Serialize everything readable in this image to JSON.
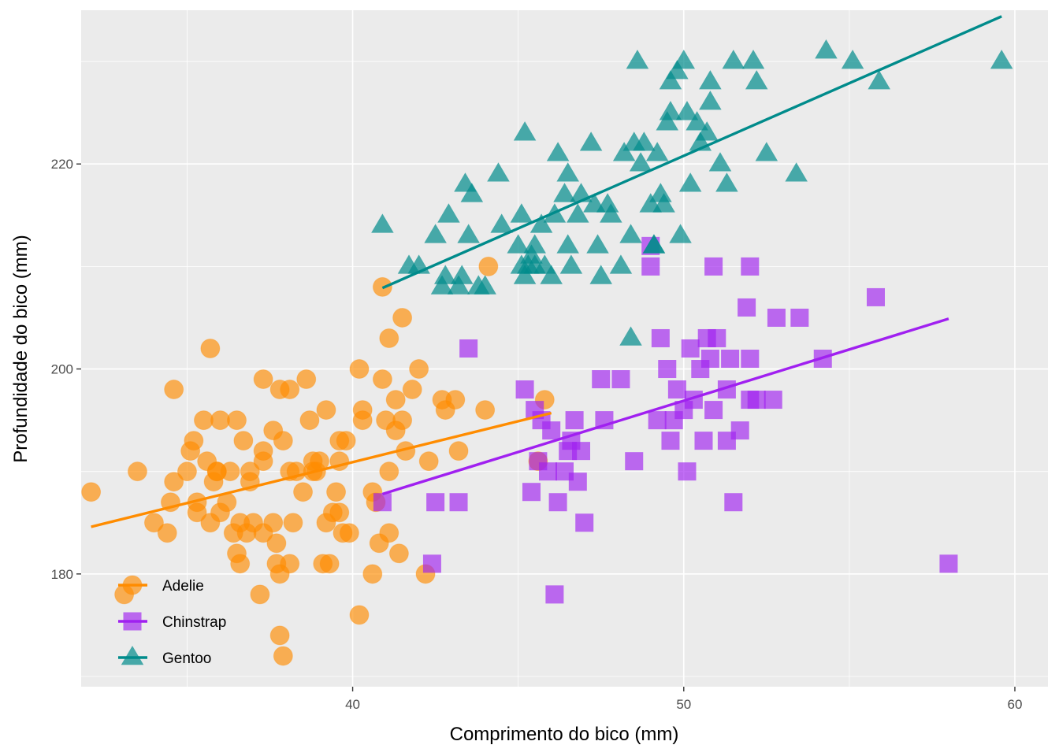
{
  "chart_data": {
    "type": "scatter",
    "title": "",
    "xlabel": "Comprimento do bico (mm)",
    "ylabel": "Profundidade do bico (mm)",
    "xlim": [
      31.8,
      61.0
    ],
    "ylim": [
      169.0,
      235.0
    ],
    "xticks": [
      40,
      50,
      60
    ],
    "yticks": [
      180,
      200,
      220
    ],
    "grid": true,
    "legend_position": "bottom-left inside",
    "series": [
      {
        "name": "Adelie",
        "color": "#FF8C00",
        "marker": "circle",
        "points": [
          [
            32.1,
            188
          ],
          [
            33.1,
            178
          ],
          [
            33.5,
            190
          ],
          [
            34.0,
            185
          ],
          [
            34.4,
            184
          ],
          [
            34.5,
            187
          ],
          [
            34.6,
            198
          ],
          [
            34.6,
            189
          ],
          [
            35.0,
            190
          ],
          [
            35.1,
            192
          ],
          [
            35.2,
            193
          ],
          [
            35.3,
            187
          ],
          [
            35.3,
            186
          ],
          [
            35.5,
            195
          ],
          [
            35.6,
            191
          ],
          [
            35.7,
            185
          ],
          [
            35.7,
            202
          ],
          [
            35.8,
            189
          ],
          [
            35.9,
            190
          ],
          [
            36.0,
            186
          ],
          [
            36.0,
            195
          ],
          [
            36.2,
            187
          ],
          [
            36.3,
            190
          ],
          [
            36.4,
            184
          ],
          [
            36.5,
            182
          ],
          [
            36.5,
            195
          ],
          [
            36.6,
            181
          ],
          [
            36.6,
            185
          ],
          [
            36.7,
            193
          ],
          [
            36.8,
            184
          ],
          [
            36.9,
            189
          ],
          [
            37.0,
            185
          ],
          [
            37.2,
            178
          ],
          [
            37.3,
            184
          ],
          [
            37.3,
            191
          ],
          [
            37.3,
            199
          ],
          [
            37.6,
            185
          ],
          [
            37.6,
            194
          ],
          [
            37.7,
            183
          ],
          [
            37.7,
            181
          ],
          [
            37.8,
            180
          ],
          [
            37.8,
            174
          ],
          [
            37.8,
            198
          ],
          [
            37.9,
            193
          ],
          [
            37.9,
            172
          ],
          [
            38.1,
            181
          ],
          [
            38.1,
            190
          ],
          [
            38.1,
            198
          ],
          [
            38.2,
            185
          ],
          [
            38.3,
            190
          ],
          [
            38.5,
            188
          ],
          [
            38.6,
            199
          ],
          [
            38.7,
            195
          ],
          [
            38.8,
            190
          ],
          [
            38.9,
            190
          ],
          [
            39.0,
            191
          ],
          [
            39.1,
            181
          ],
          [
            39.2,
            185
          ],
          [
            39.3,
            181
          ],
          [
            39.4,
            186
          ],
          [
            39.5,
            188
          ],
          [
            39.6,
            191
          ],
          [
            39.6,
            186
          ],
          [
            39.7,
            184
          ],
          [
            39.8,
            193
          ],
          [
            39.9,
            184
          ],
          [
            40.2,
            176
          ],
          [
            40.2,
            200
          ],
          [
            40.3,
            196
          ],
          [
            40.3,
            195
          ],
          [
            40.6,
            180
          ],
          [
            40.7,
            187
          ],
          [
            40.8,
            183
          ],
          [
            40.9,
            199
          ],
          [
            41.0,
            195
          ],
          [
            41.1,
            184
          ],
          [
            41.1,
            190
          ],
          [
            41.3,
            194
          ],
          [
            41.4,
            182
          ],
          [
            41.5,
            205
          ],
          [
            41.6,
            192
          ],
          [
            42.0,
            200
          ],
          [
            42.2,
            180
          ],
          [
            42.3,
            191
          ],
          [
            42.7,
            197
          ],
          [
            42.8,
            196
          ],
          [
            43.1,
            197
          ],
          [
            43.2,
            192
          ],
          [
            44.0,
            196
          ],
          [
            44.1,
            210
          ],
          [
            45.8,
            197
          ],
          [
            45.6,
            191
          ],
          [
            40.9,
            208
          ],
          [
            41.3,
            197
          ],
          [
            41.1,
            203
          ],
          [
            41.8,
            198
          ],
          [
            40.6,
            188
          ],
          [
            39.2,
            196
          ],
          [
            38.8,
            191
          ],
          [
            39.6,
            193
          ],
          [
            41.5,
            195
          ],
          [
            36.9,
            190
          ],
          [
            37.3,
            192
          ],
          [
            35.9,
            190
          ]
        ]
      },
      {
        "name": "Chinstrap",
        "color": "#A020F0",
        "marker": "square",
        "points": [
          [
            40.9,
            187
          ],
          [
            42.4,
            181
          ],
          [
            42.5,
            187
          ],
          [
            43.2,
            187
          ],
          [
            43.5,
            202
          ],
          [
            45.2,
            198
          ],
          [
            45.4,
            188
          ],
          [
            45.5,
            196
          ],
          [
            45.6,
            191
          ],
          [
            45.7,
            195
          ],
          [
            45.9,
            190
          ],
          [
            46.0,
            194
          ],
          [
            46.1,
            178
          ],
          [
            46.2,
            187
          ],
          [
            46.4,
            190
          ],
          [
            46.5,
            192
          ],
          [
            46.6,
            193
          ],
          [
            46.7,
            195
          ],
          [
            46.8,
            189
          ],
          [
            46.9,
            192
          ],
          [
            47.0,
            185
          ],
          [
            47.5,
            199
          ],
          [
            47.6,
            195
          ],
          [
            48.1,
            199
          ],
          [
            48.5,
            191
          ],
          [
            49.0,
            212
          ],
          [
            49.0,
            210
          ],
          [
            49.2,
            195
          ],
          [
            49.3,
            203
          ],
          [
            49.5,
            200
          ],
          [
            49.6,
            193
          ],
          [
            49.7,
            195
          ],
          [
            49.8,
            198
          ],
          [
            50.0,
            196
          ],
          [
            50.1,
            190
          ],
          [
            50.2,
            202
          ],
          [
            50.3,
            197
          ],
          [
            50.5,
            200
          ],
          [
            50.6,
            193
          ],
          [
            50.7,
            203
          ],
          [
            50.8,
            201
          ],
          [
            50.9,
            196
          ],
          [
            51.0,
            203
          ],
          [
            51.3,
            193
          ],
          [
            51.3,
            198
          ],
          [
            51.4,
            201
          ],
          [
            51.5,
            187
          ],
          [
            51.7,
            194
          ],
          [
            51.9,
            206
          ],
          [
            52.0,
            197
          ],
          [
            52.0,
            201
          ],
          [
            52.2,
            197
          ],
          [
            52.7,
            197
          ],
          [
            52.8,
            205
          ],
          [
            53.5,
            205
          ],
          [
            54.2,
            201
          ],
          [
            55.8,
            207
          ],
          [
            58.0,
            181
          ],
          [
            50.9,
            210
          ],
          [
            52.0,
            210
          ]
        ]
      },
      {
        "name": "Gentoo",
        "color": "#008B8B",
        "marker": "triangle",
        "points": [
          [
            40.9,
            214
          ],
          [
            41.7,
            210
          ],
          [
            42.0,
            210
          ],
          [
            42.5,
            213
          ],
          [
            42.7,
            208
          ],
          [
            42.8,
            209
          ],
          [
            42.9,
            215
          ],
          [
            43.2,
            208
          ],
          [
            43.3,
            209
          ],
          [
            43.4,
            218
          ],
          [
            43.5,
            213
          ],
          [
            43.6,
            217
          ],
          [
            43.8,
            208
          ],
          [
            44.0,
            208
          ],
          [
            44.4,
            219
          ],
          [
            44.5,
            214
          ],
          [
            45.0,
            212
          ],
          [
            45.1,
            210
          ],
          [
            45.1,
            215
          ],
          [
            45.2,
            209
          ],
          [
            45.2,
            223
          ],
          [
            45.3,
            210
          ],
          [
            45.4,
            211
          ],
          [
            45.5,
            210
          ],
          [
            45.5,
            212
          ],
          [
            45.7,
            214
          ],
          [
            45.8,
            210
          ],
          [
            46.1,
            215
          ],
          [
            46.2,
            221
          ],
          [
            46.4,
            217
          ],
          [
            46.5,
            212
          ],
          [
            46.6,
            210
          ],
          [
            46.8,
            215
          ],
          [
            46.9,
            217
          ],
          [
            47.3,
            216
          ],
          [
            47.4,
            212
          ],
          [
            47.5,
            209
          ],
          [
            47.7,
            216
          ],
          [
            47.8,
            215
          ],
          [
            48.1,
            210
          ],
          [
            48.2,
            221
          ],
          [
            48.4,
            213
          ],
          [
            48.5,
            222
          ],
          [
            48.6,
            230
          ],
          [
            48.7,
            220
          ],
          [
            48.8,
            222
          ],
          [
            49.0,
            216
          ],
          [
            49.1,
            212
          ],
          [
            49.2,
            221
          ],
          [
            49.3,
            217
          ],
          [
            49.4,
            216
          ],
          [
            49.5,
            224
          ],
          [
            49.6,
            225
          ],
          [
            49.8,
            229
          ],
          [
            49.9,
            213
          ],
          [
            50.0,
            230
          ],
          [
            50.1,
            225
          ],
          [
            50.2,
            218
          ],
          [
            50.4,
            224
          ],
          [
            50.5,
            222
          ],
          [
            50.7,
            223
          ],
          [
            50.8,
            228
          ],
          [
            51.1,
            220
          ],
          [
            51.3,
            218
          ],
          [
            51.5,
            230
          ],
          [
            52.1,
            230
          ],
          [
            52.2,
            228
          ],
          [
            52.5,
            221
          ],
          [
            53.4,
            219
          ],
          [
            54.3,
            231
          ],
          [
            55.1,
            230
          ],
          [
            55.9,
            228
          ],
          [
            59.6,
            230
          ],
          [
            48.4,
            203
          ],
          [
            46.0,
            209
          ],
          [
            47.2,
            222
          ],
          [
            46.5,
            219
          ],
          [
            49.1,
            212
          ],
          [
            50.8,
            226
          ],
          [
            49.6,
            228
          ]
        ]
      }
    ],
    "trend_lines": [
      {
        "name": "Adelie",
        "color": "#FF8C00",
        "from": [
          32.1,
          184.6
        ],
        "to": [
          46.0,
          195.7
        ]
      },
      {
        "name": "Chinstrap",
        "color": "#A020F0",
        "from": [
          40.9,
          187.8
        ],
        "to": [
          58.0,
          204.9
        ]
      },
      {
        "name": "Gentoo",
        "color": "#008B8B",
        "from": [
          40.9,
          207.9
        ],
        "to": [
          59.6,
          234.4
        ]
      }
    ]
  }
}
